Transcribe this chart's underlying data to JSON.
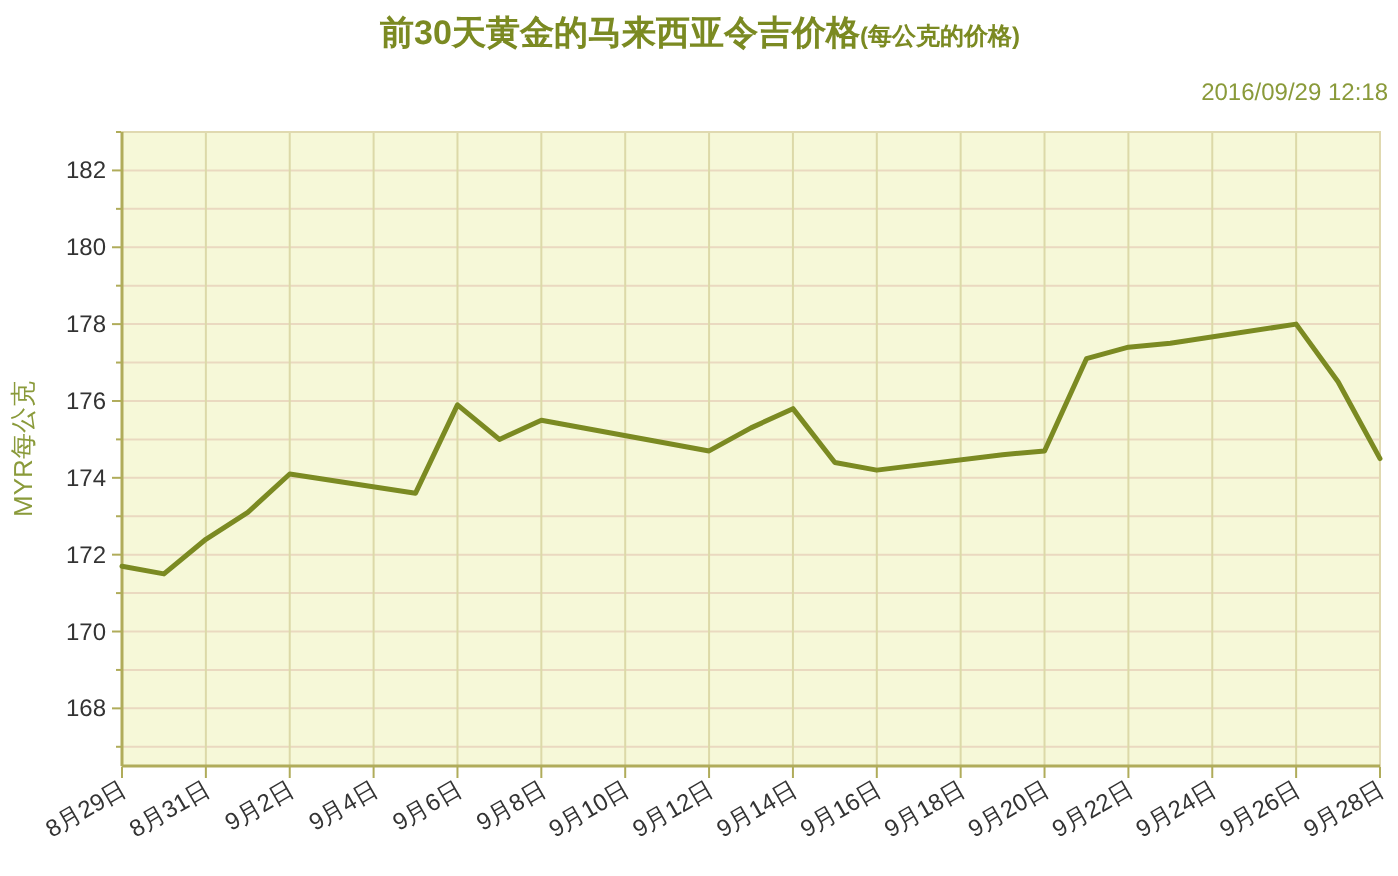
{
  "chart_data": {
    "type": "line",
    "title": "前30天黄金的马来西亚令吉价格",
    "subtitle": "(每公克的价格)",
    "ylabel": "MYR每公克",
    "annotations": [
      "2016/09/29 12:18"
    ],
    "x": [
      "2016-08-29",
      "2016-08-30",
      "2016-08-31",
      "2016-09-01",
      "2016-09-02",
      "2016-09-05",
      "2016-09-06",
      "2016-09-07",
      "2016-09-08",
      "2016-09-12",
      "2016-09-13",
      "2016-09-14",
      "2016-09-15",
      "2016-09-16",
      "2016-09-19",
      "2016-09-20",
      "2016-09-21",
      "2016-09-22",
      "2016-09-23",
      "2016-09-26",
      "2016-09-27",
      "2016-09-28"
    ],
    "series": [
      {
        "color": "#7b8a22",
        "values": [
          171.7,
          171.5,
          172.4,
          173.1,
          174.1,
          173.6,
          175.9,
          175.0,
          175.5,
          174.7,
          175.3,
          175.8,
          174.4,
          174.2,
          174.6,
          174.7,
          177.1,
          177.4,
          177.5,
          178.0,
          176.5,
          174.5
        ]
      }
    ],
    "xlim": [
      "2016-08-29",
      "2016-09-28"
    ],
    "xticks": [
      {
        "value": "2016-08-29",
        "label": "8月29日"
      },
      {
        "value": "2016-08-31",
        "label": "8月31日"
      },
      {
        "value": "2016-09-02",
        "label": "9月2日"
      },
      {
        "value": "2016-09-04",
        "label": "9月4日"
      },
      {
        "value": "2016-09-06",
        "label": "9月6日"
      },
      {
        "value": "2016-09-08",
        "label": "9月8日"
      },
      {
        "value": "2016-09-10",
        "label": "9月10日"
      },
      {
        "value": "2016-09-12",
        "label": "9月12日"
      },
      {
        "value": "2016-09-14",
        "label": "9月14日"
      },
      {
        "value": "2016-09-16",
        "label": "9月16日"
      },
      {
        "value": "2016-09-18",
        "label": "9月18日"
      },
      {
        "value": "2016-09-20",
        "label": "9月20日"
      },
      {
        "value": "2016-09-22",
        "label": "9月22日"
      },
      {
        "value": "2016-09-24",
        "label": "9月24日"
      },
      {
        "value": "2016-09-26",
        "label": "9月26日"
      },
      {
        "value": "2016-09-28",
        "label": "9月28日"
      }
    ],
    "ylim": [
      166.5,
      183
    ],
    "yticks": [
      {
        "value": 167,
        "label": null
      },
      168,
      {
        "value": 169,
        "label": null
      },
      170,
      {
        "value": 171,
        "label": null
      },
      172,
      {
        "value": 173,
        "label": null
      },
      174,
      {
        "value": 175,
        "label": null
      },
      176,
      {
        "value": 177,
        "label": null
      },
      178,
      {
        "value": 179,
        "label": null
      },
      180,
      {
        "value": 181,
        "label": null
      },
      182,
      {
        "value": 183,
        "label": null
      }
    ],
    "grid": true,
    "marker": "none",
    "line_style": "solid"
  }
}
